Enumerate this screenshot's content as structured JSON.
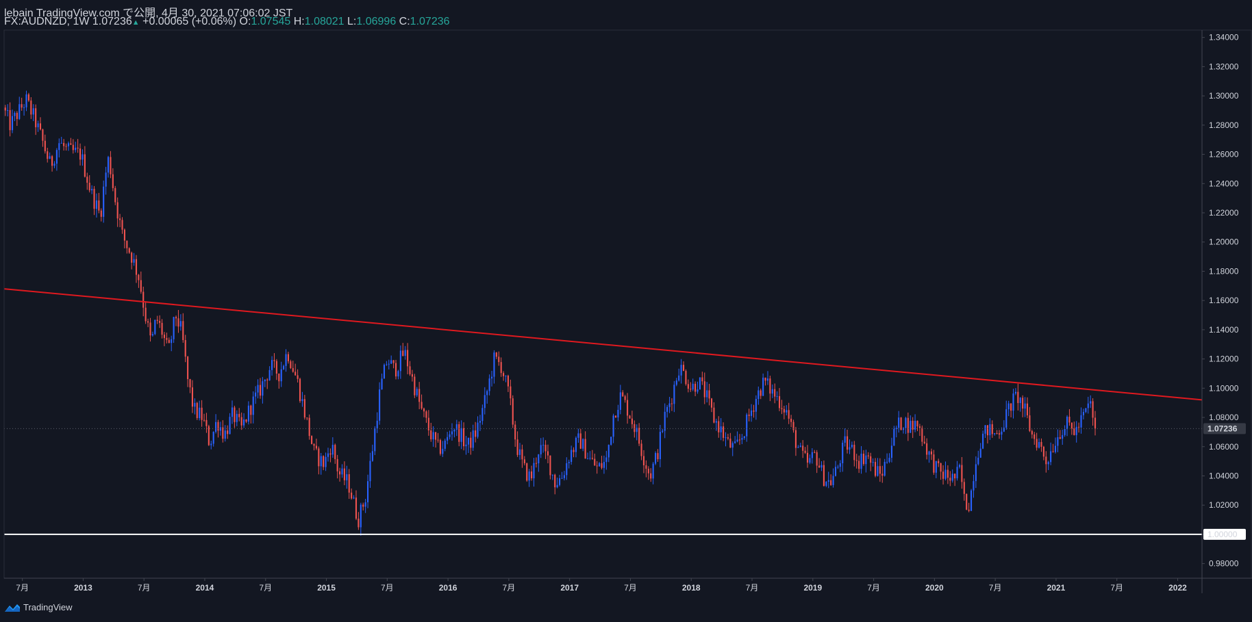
{
  "header": {
    "publisher": "lebain TradingView.com で公開, 4月 30, 2021 07:06:02 JST",
    "symbol": "FX:AUDNZD, 1W",
    "last": "1.07236",
    "change": "+0.00065 (+0.06%)",
    "o_label": "O:",
    "o_value": "1.07545",
    "h_label": "H:",
    "h_value": "1.08021",
    "l_label": "L:",
    "l_value": "1.06996",
    "c_label": "C:",
    "c_value": "1.07236"
  },
  "footer": {
    "brand": "TradingView"
  },
  "colors": {
    "background": "#131722",
    "up": "#2962ff",
    "down": "#ef5350",
    "resistance_line": "#e0191f",
    "support_line": "#ffffff",
    "text": "#d1d4dc",
    "price_label_bg": "#ffffff"
  },
  "chart_data": {
    "type": "candlestick",
    "symbol": "FX:AUDNZD",
    "timeframe": "1W",
    "y_ticks": [
      "0.98000",
      "1.00000",
      "1.02000",
      "1.04000",
      "1.06000",
      "1.08000",
      "1.10000",
      "1.12000",
      "1.14000",
      "1.16000",
      "1.18000",
      "1.20000",
      "1.22000",
      "1.24000",
      "1.26000",
      "1.28000",
      "1.30000",
      "1.32000",
      "1.34000"
    ],
    "ylim": [
      0.97,
      1.345
    ],
    "x_ticks": [
      {
        "label": "7月",
        "t": 2012.5
      },
      {
        "label": "2013",
        "t": 2013.0
      },
      {
        "label": "7月",
        "t": 2013.5
      },
      {
        "label": "2014",
        "t": 2014.0
      },
      {
        "label": "7月",
        "t": 2014.5
      },
      {
        "label": "2015",
        "t": 2015.0
      },
      {
        "label": "7月",
        "t": 2015.5
      },
      {
        "label": "2016",
        "t": 2016.0
      },
      {
        "label": "7月",
        "t": 2016.5
      },
      {
        "label": "2017",
        "t": 2017.0
      },
      {
        "label": "7月",
        "t": 2017.5
      },
      {
        "label": "2018",
        "t": 2018.0
      },
      {
        "label": "7月",
        "t": 2018.5
      },
      {
        "label": "2019",
        "t": 2019.0
      },
      {
        "label": "7月",
        "t": 2019.5
      },
      {
        "label": "2020",
        "t": 2020.0
      },
      {
        "label": "7月",
        "t": 2020.5
      },
      {
        "label": "2021",
        "t": 2021.0
      },
      {
        "label": "7月",
        "t": 2021.5
      },
      {
        "label": "2022",
        "t": 2022.0
      }
    ],
    "xlim": [
      2012.35,
      2022.2
    ],
    "last_price": "1.07236",
    "last_price_value": 1.07236,
    "support_level": "1.00000",
    "support_value": 1.0,
    "resistance_line": {
      "t1": 2012.35,
      "v1": 1.168,
      "t2": 2022.2,
      "v2": 1.092
    },
    "price_anchors": [
      [
        2012.36,
        1.292
      ],
      [
        2012.42,
        1.28
      ],
      [
        2012.48,
        1.288
      ],
      [
        2012.55,
        1.297
      ],
      [
        2012.62,
        1.284
      ],
      [
        2012.68,
        1.27
      ],
      [
        2012.75,
        1.252
      ],
      [
        2012.82,
        1.268
      ],
      [
        2012.9,
        1.262
      ],
      [
        2013.0,
        1.26
      ],
      [
        2013.08,
        1.235
      ],
      [
        2013.16,
        1.218
      ],
      [
        2013.2,
        1.245
      ],
      [
        2013.23,
        1.258
      ],
      [
        2013.28,
        1.23
      ],
      [
        2013.34,
        1.205
      ],
      [
        2013.42,
        1.19
      ],
      [
        2013.48,
        1.175
      ],
      [
        2013.53,
        1.15
      ],
      [
        2013.58,
        1.13
      ],
      [
        2013.62,
        1.148
      ],
      [
        2013.67,
        1.138
      ],
      [
        2013.72,
        1.124
      ],
      [
        2013.78,
        1.15
      ],
      [
        2013.83,
        1.138
      ],
      [
        2013.88,
        1.105
      ],
      [
        2013.93,
        1.085
      ],
      [
        2014.0,
        1.08
      ],
      [
        2014.06,
        1.062
      ],
      [
        2014.12,
        1.078
      ],
      [
        2014.18,
        1.068
      ],
      [
        2014.25,
        1.082
      ],
      [
        2014.32,
        1.072
      ],
      [
        2014.4,
        1.088
      ],
      [
        2014.48,
        1.1
      ],
      [
        2014.56,
        1.115
      ],
      [
        2014.63,
        1.11
      ],
      [
        2014.7,
        1.125
      ],
      [
        2014.78,
        1.105
      ],
      [
        2014.85,
        1.08
      ],
      [
        2014.92,
        1.055
      ],
      [
        2015.0,
        1.048
      ],
      [
        2015.06,
        1.062
      ],
      [
        2015.12,
        1.042
      ],
      [
        2015.2,
        1.035
      ],
      [
        2015.28,
        1.01
      ],
      [
        2015.34,
        1.025
      ],
      [
        2015.4,
        1.06
      ],
      [
        2015.46,
        1.098
      ],
      [
        2015.52,
        1.12
      ],
      [
        2015.58,
        1.112
      ],
      [
        2015.66,
        1.125
      ],
      [
        2015.73,
        1.105
      ],
      [
        2015.8,
        1.085
      ],
      [
        2015.87,
        1.07
      ],
      [
        2015.94,
        1.058
      ],
      [
        2016.0,
        1.062
      ],
      [
        2016.06,
        1.075
      ],
      [
        2016.12,
        1.068
      ],
      [
        2016.18,
        1.06
      ],
      [
        2016.25,
        1.07
      ],
      [
        2016.32,
        1.09
      ],
      [
        2016.4,
        1.12
      ],
      [
        2016.46,
        1.115
      ],
      [
        2016.52,
        1.095
      ],
      [
        2016.58,
        1.062
      ],
      [
        2016.64,
        1.045
      ],
      [
        2016.7,
        1.038
      ],
      [
        2016.77,
        1.06
      ],
      [
        2016.84,
        1.052
      ],
      [
        2016.9,
        1.035
      ],
      [
        2016.96,
        1.04
      ],
      [
        2017.02,
        1.055
      ],
      [
        2017.1,
        1.065
      ],
      [
        2017.18,
        1.052
      ],
      [
        2017.25,
        1.045
      ],
      [
        2017.32,
        1.05
      ],
      [
        2017.38,
        1.082
      ],
      [
        2017.44,
        1.095
      ],
      [
        2017.5,
        1.085
      ],
      [
        2017.56,
        1.072
      ],
      [
        2017.62,
        1.055
      ],
      [
        2017.68,
        1.04
      ],
      [
        2017.74,
        1.055
      ],
      [
        2017.8,
        1.08
      ],
      [
        2017.86,
        1.095
      ],
      [
        2017.92,
        1.115
      ],
      [
        2017.96,
        1.11
      ],
      [
        2018.02,
        1.1
      ],
      [
        2018.08,
        1.105
      ],
      [
        2018.14,
        1.095
      ],
      [
        2018.2,
        1.08
      ],
      [
        2018.26,
        1.072
      ],
      [
        2018.32,
        1.062
      ],
      [
        2018.38,
        1.058
      ],
      [
        2018.44,
        1.068
      ],
      [
        2018.5,
        1.082
      ],
      [
        2018.56,
        1.095
      ],
      [
        2018.62,
        1.105
      ],
      [
        2018.68,
        1.098
      ],
      [
        2018.74,
        1.092
      ],
      [
        2018.8,
        1.085
      ],
      [
        2018.86,
        1.068
      ],
      [
        2018.92,
        1.055
      ],
      [
        2018.98,
        1.048
      ],
      [
        2019.04,
        1.055
      ],
      [
        2019.1,
        1.04
      ],
      [
        2019.16,
        1.035
      ],
      [
        2019.22,
        1.045
      ],
      [
        2019.28,
        1.062
      ],
      [
        2019.34,
        1.058
      ],
      [
        2019.4,
        1.05
      ],
      [
        2019.46,
        1.055
      ],
      [
        2019.52,
        1.045
      ],
      [
        2019.58,
        1.04
      ],
      [
        2019.64,
        1.055
      ],
      [
        2019.7,
        1.072
      ],
      [
        2019.76,
        1.078
      ],
      [
        2019.82,
        1.074
      ],
      [
        2019.88,
        1.076
      ],
      [
        2019.94,
        1.062
      ],
      [
        2020.0,
        1.05
      ],
      [
        2020.06,
        1.042
      ],
      [
        2020.12,
        1.04
      ],
      [
        2020.18,
        1.038
      ],
      [
        2020.23,
        1.044
      ],
      [
        2020.27,
        1.02
      ],
      [
        2020.31,
        1.022
      ],
      [
        2020.35,
        1.048
      ],
      [
        2020.4,
        1.065
      ],
      [
        2020.46,
        1.072
      ],
      [
        2020.52,
        1.068
      ],
      [
        2020.58,
        1.075
      ],
      [
        2020.64,
        1.088
      ],
      [
        2020.7,
        1.095
      ],
      [
        2020.76,
        1.085
      ],
      [
        2020.82,
        1.068
      ],
      [
        2020.88,
        1.062
      ],
      [
        2020.94,
        1.05
      ],
      [
        2021.0,
        1.062
      ],
      [
        2021.06,
        1.072
      ],
      [
        2021.12,
        1.075
      ],
      [
        2021.18,
        1.07
      ],
      [
        2021.24,
        1.08
      ],
      [
        2021.3,
        1.09
      ],
      [
        2021.34,
        1.072
      ]
    ]
  }
}
